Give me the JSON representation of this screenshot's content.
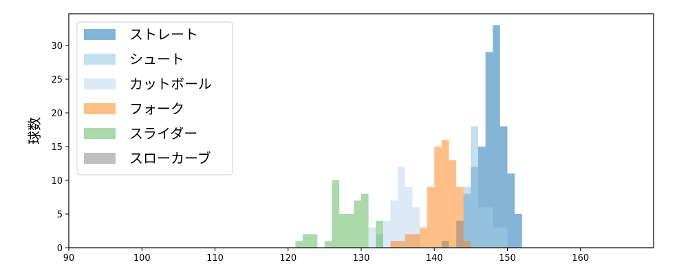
{
  "chart_data": {
    "type": "histogram",
    "ylabel": "球数",
    "xlabel": "",
    "xlim": [
      90,
      170
    ],
    "ylim": [
      0,
      34.7
    ],
    "xticks": [
      90,
      100,
      110,
      120,
      130,
      140,
      150,
      160
    ],
    "yticks": [
      0,
      5,
      10,
      15,
      20,
      25,
      30
    ],
    "grid": false,
    "legend_position": "top-left",
    "bin_width": 1,
    "series": [
      {
        "name": "ストレート",
        "color": "#1f77b4",
        "opacity": 0.55,
        "bins": [
          [
            144,
            8
          ],
          [
            145,
            12
          ],
          [
            146,
            15
          ],
          [
            147,
            29
          ],
          [
            148,
            33
          ],
          [
            149,
            18
          ],
          [
            150,
            11
          ],
          [
            151,
            5
          ]
        ]
      },
      {
        "name": "シュート",
        "color": "#9ecae1",
        "opacity": 0.6,
        "bins": [
          [
            144,
            9
          ],
          [
            145,
            18
          ],
          [
            146,
            6
          ],
          [
            147,
            6
          ],
          [
            148,
            3
          ],
          [
            149,
            3
          ]
        ]
      },
      {
        "name": "カットボール",
        "color": "#c6dbef",
        "opacity": 0.6,
        "bins": [
          [
            131,
            3
          ],
          [
            132,
            2
          ],
          [
            133,
            4
          ],
          [
            134,
            7
          ],
          [
            135,
            12
          ],
          [
            136,
            9
          ],
          [
            137,
            6
          ]
        ]
      },
      {
        "name": "フォーク",
        "color": "#ff7f0e",
        "opacity": 0.5,
        "bins": [
          [
            134,
            1
          ],
          [
            135,
            1
          ],
          [
            136,
            2
          ],
          [
            137,
            2
          ],
          [
            138,
            3
          ],
          [
            139,
            9
          ],
          [
            140,
            15
          ],
          [
            141,
            16
          ],
          [
            142,
            13
          ],
          [
            143,
            9
          ],
          [
            144,
            1
          ]
        ]
      },
      {
        "name": "スライダー",
        "color": "#2ca02c",
        "opacity": 0.4,
        "bins": [
          [
            121,
            1
          ],
          [
            122,
            2
          ],
          [
            123,
            2
          ],
          [
            125,
            1
          ],
          [
            126,
            10
          ],
          [
            127,
            5
          ],
          [
            128,
            5
          ],
          [
            129,
            7
          ],
          [
            130,
            8
          ],
          [
            132,
            4
          ]
        ]
      },
      {
        "name": "スローカーブ",
        "color": "#7f7f7f",
        "opacity": 0.5,
        "bins": [
          [
            141,
            1
          ],
          [
            143,
            4
          ]
        ]
      }
    ]
  }
}
